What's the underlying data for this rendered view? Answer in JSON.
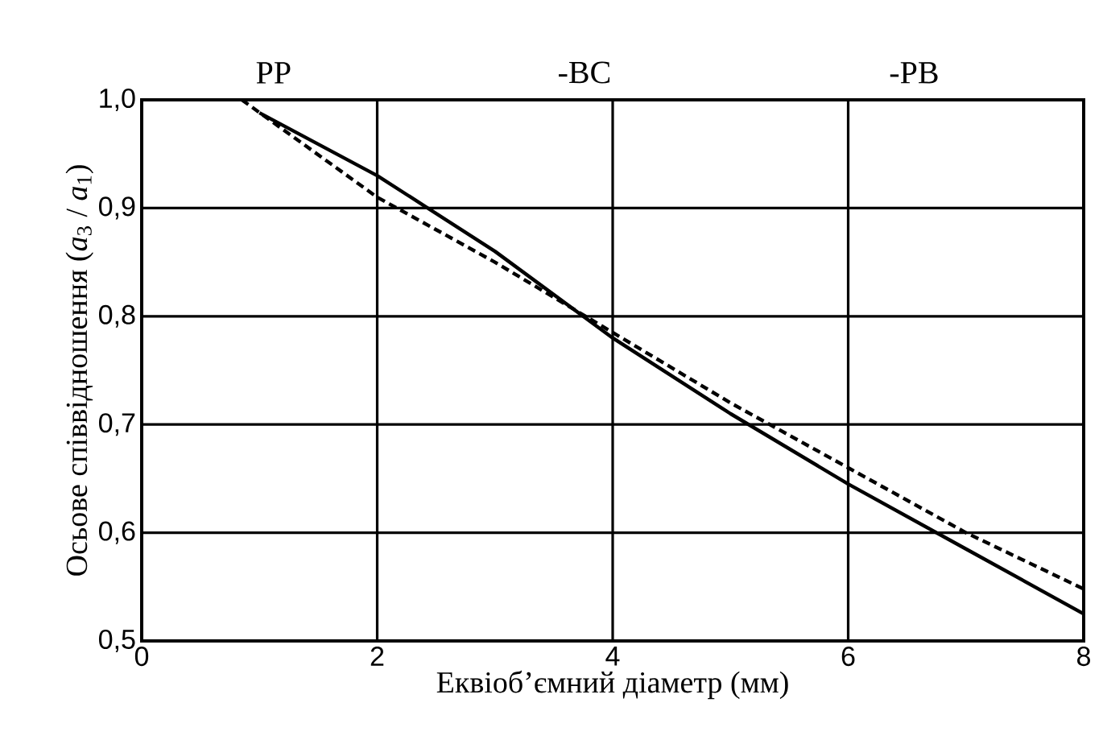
{
  "chart_data": {
    "type": "line",
    "xlabel": "Еквіоб’ємний діаметр (мм)",
    "ylabel": "Осьове співвідношення (*a*$_{3}$ / *a*$_{1}$)",
    "annotations": [
      "PP",
      "-BC",
      "-PB"
    ],
    "xlim": [
      0,
      8
    ],
    "ylim": [
      0.5,
      1.0
    ],
    "xticks": [
      0,
      2,
      4,
      6,
      8
    ],
    "yticks": [
      {
        "value": 0.5,
        "label": "0,5"
      },
      {
        "value": 0.6,
        "label": "0,6"
      },
      {
        "value": 0.7,
        "label": "0,7"
      },
      {
        "value": 0.8,
        "label": "0,8"
      },
      {
        "value": 0.9,
        "label": "0,9"
      },
      {
        "value": 1.0,
        "label": "1,0"
      }
    ],
    "grid": true,
    "series": [
      {
        "color": "#000000",
        "line_style": "solid",
        "x": [
          1.0,
          2.0,
          3.0,
          4.0,
          5.0,
          6.0,
          7.0,
          8.0
        ],
        "values": [
          0.988,
          0.93,
          0.86,
          0.78,
          0.71,
          0.645,
          0.585,
          0.525
        ]
      },
      {
        "color": "#000000",
        "line_style": "dashed",
        "x": [
          0.85,
          2.0,
          3.0,
          4.0,
          5.0,
          6.0,
          7.0,
          8.0
        ],
        "values": [
          1.0,
          0.91,
          0.85,
          0.785,
          0.72,
          0.66,
          0.6,
          0.548
        ]
      }
    ]
  }
}
